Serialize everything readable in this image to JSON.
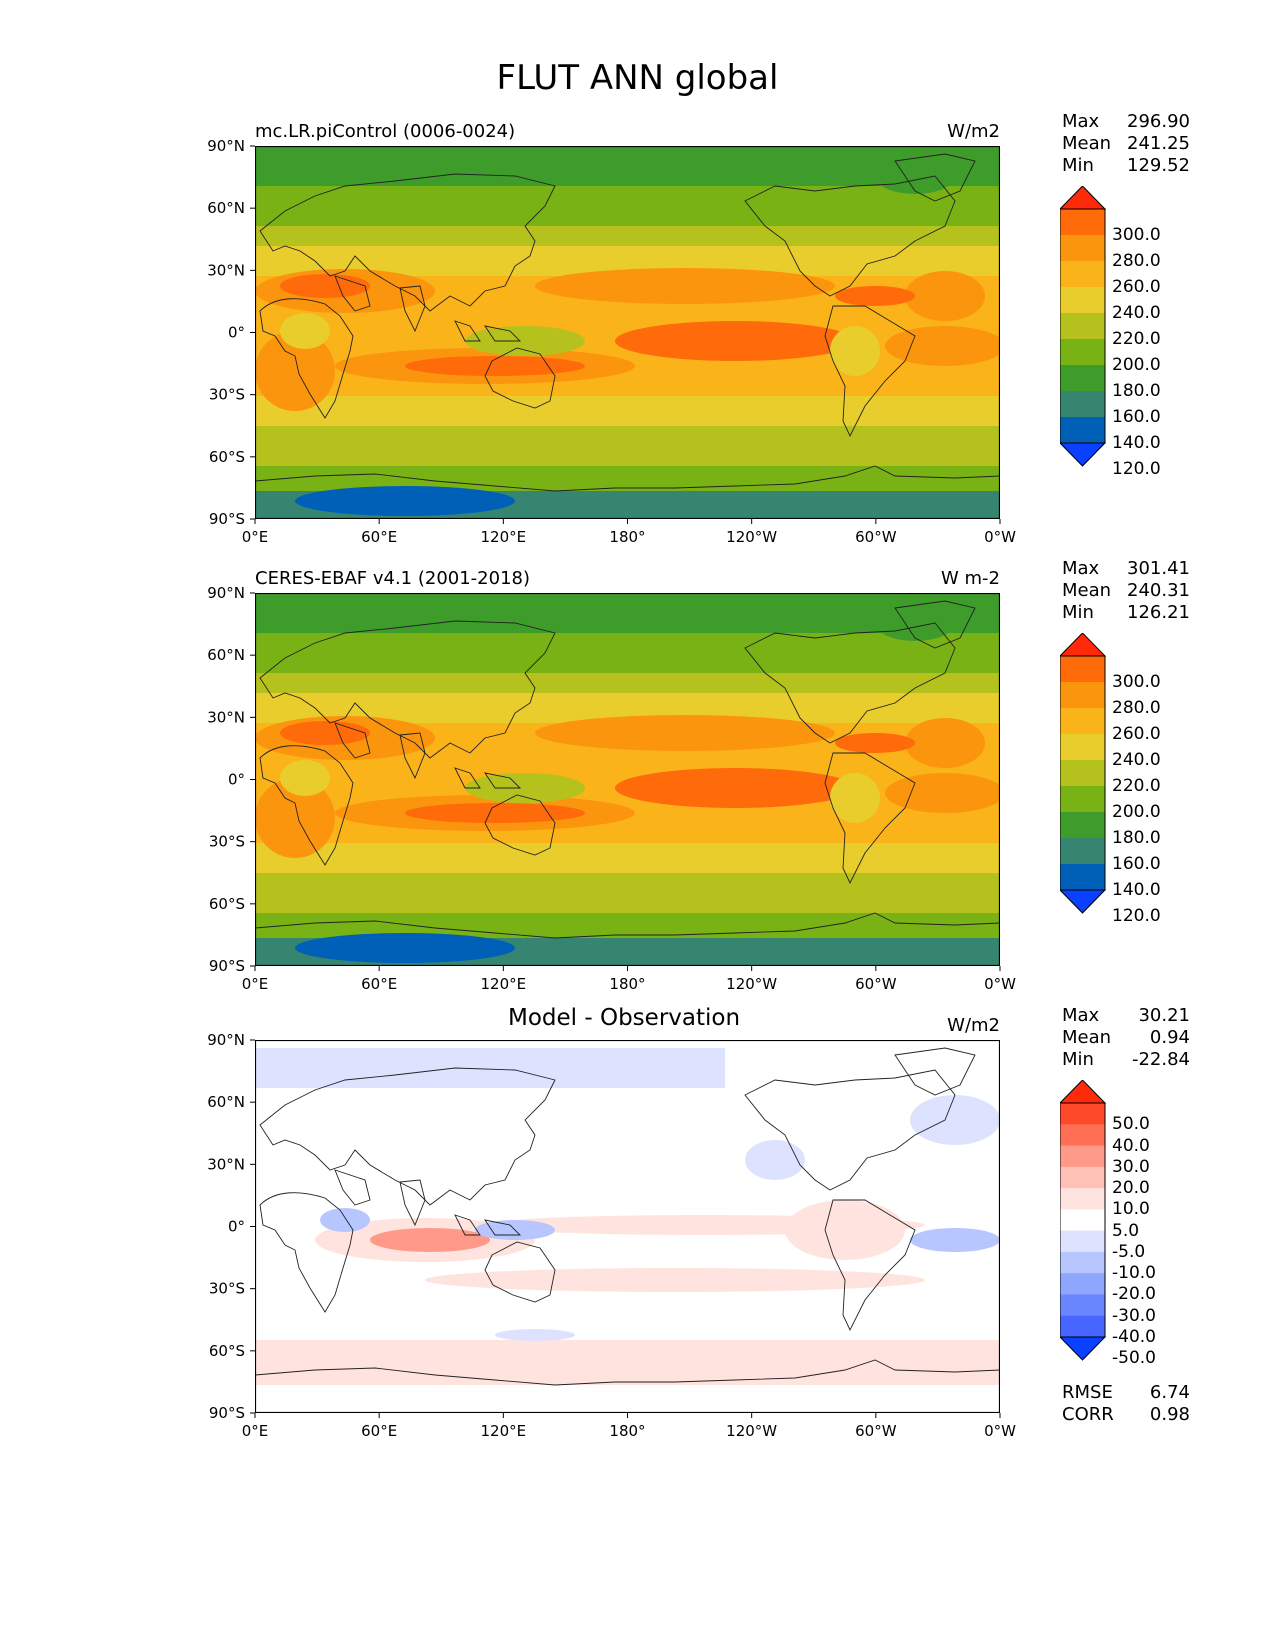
{
  "figure_title": "FLUT ANN global",
  "panels": [
    {
      "title": "mc.LR.piControl (0006-0024)",
      "units": "W/m2",
      "center_title": "",
      "stats": {
        "max_label": "Max",
        "max": "296.90",
        "mean_label": "Mean",
        "mean": "241.25",
        "min_label": "Min",
        "min": "129.52"
      },
      "colorbar": {
        "labels": [
          "300.0",
          "280.0",
          "260.0",
          "240.0",
          "220.0",
          "200.0",
          "180.0",
          "160.0",
          "140.0",
          "120.0"
        ],
        "colors": [
          "#ff2a0a",
          "#ff6a0a",
          "#fb950e",
          "#fbb31a",
          "#e9cd2c",
          "#b5c21e",
          "#78b214",
          "#3e9c2a",
          "#358570",
          "#0060b8",
          "#0a40ff"
        ]
      }
    },
    {
      "title": "CERES-EBAF v4.1 (2001-2018)",
      "units": "W m-2",
      "center_title": "",
      "stats": {
        "max_label": "Max",
        "max": "301.41",
        "mean_label": "Mean",
        "mean": "240.31",
        "min_label": "Min",
        "min": "126.21"
      },
      "colorbar": {
        "labels": [
          "300.0",
          "280.0",
          "260.0",
          "240.0",
          "220.0",
          "200.0",
          "180.0",
          "160.0",
          "140.0",
          "120.0"
        ],
        "colors": [
          "#ff2a0a",
          "#ff6a0a",
          "#fb950e",
          "#fbb31a",
          "#e9cd2c",
          "#b5c21e",
          "#78b214",
          "#3e9c2a",
          "#358570",
          "#0060b8",
          "#0a40ff"
        ]
      }
    },
    {
      "title": "",
      "units": "W/m2",
      "center_title": "Model - Observation",
      "stats": {
        "max_label": "Max",
        "max": "30.21",
        "mean_label": "Mean",
        "mean": "0.94",
        "min_label": "Min",
        "min": "-22.84"
      },
      "colorbar": {
        "labels": [
          "50.0",
          "40.0",
          "30.0",
          "20.0",
          "10.0",
          "5.0",
          "-5.0",
          "-10.0",
          "-20.0",
          "-30.0",
          "-40.0",
          "-50.0"
        ],
        "colors": [
          "#ff2a0a",
          "#ff4a2a",
          "#ff6e55",
          "#ff9a88",
          "#ffc0b6",
          "#ffe3de",
          "#ffffff",
          "#dde3ff",
          "#b8c6ff",
          "#8fa6ff",
          "#6a86ff",
          "#4666ff",
          "#0a40ff"
        ]
      },
      "metrics": {
        "rmse_label": "RMSE",
        "rmse": "6.74",
        "corr_label": "CORR",
        "corr": "0.98"
      }
    }
  ],
  "axes": {
    "lat_labels": [
      "90°N",
      "60°N",
      "30°N",
      "0°",
      "30°S",
      "60°S",
      "90°S"
    ],
    "lon_labels": [
      "0°E",
      "60°E",
      "120°E",
      "180°",
      "120°W",
      "60°W",
      "0°W"
    ]
  }
}
